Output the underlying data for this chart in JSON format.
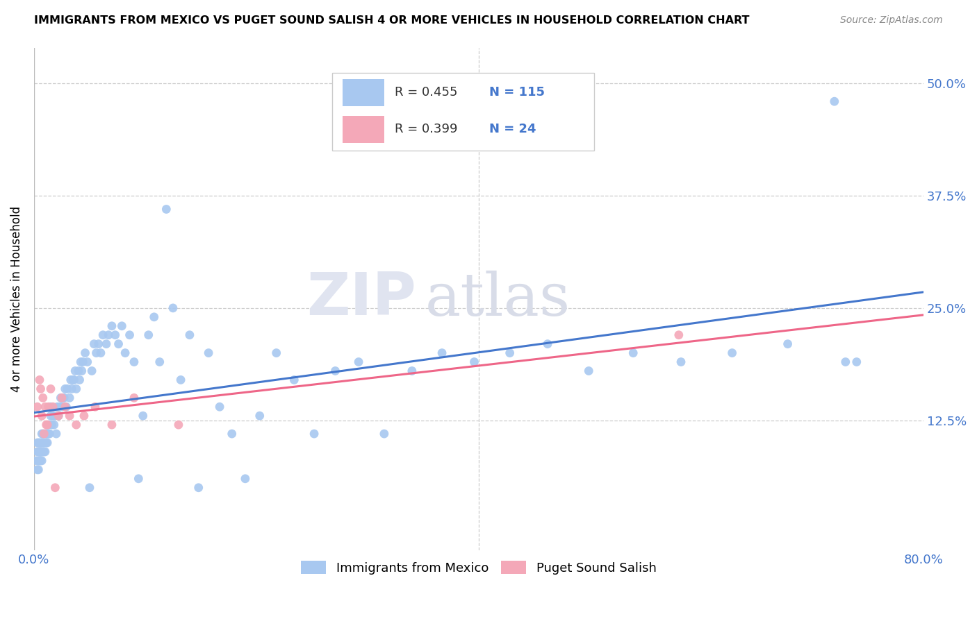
{
  "title": "IMMIGRANTS FROM MEXICO VS PUGET SOUND SALISH 4 OR MORE VEHICLES IN HOUSEHOLD CORRELATION CHART",
  "source": "Source: ZipAtlas.com",
  "ylabel": "4 or more Vehicles in Household",
  "xlim": [
    0.0,
    0.8
  ],
  "ylim": [
    -0.02,
    0.54
  ],
  "yticks": [
    0.0,
    0.125,
    0.25,
    0.375,
    0.5
  ],
  "ytick_labels": [
    "",
    "12.5%",
    "25.0%",
    "37.5%",
    "50.0%"
  ],
  "xtick_labels": [
    "0.0%",
    "",
    "",
    "",
    "80.0%"
  ],
  "blue_R": 0.455,
  "blue_N": 115,
  "pink_R": 0.399,
  "pink_N": 24,
  "blue_color": "#a8c8f0",
  "pink_color": "#f4a8b8",
  "blue_line_color": "#4477cc",
  "pink_line_color": "#ee6688",
  "watermark_zip": "ZIP",
  "watermark_atlas": "atlas",
  "legend_label_blue": "Immigrants from Mexico",
  "legend_label_pink": "Puget Sound Salish",
  "blue_scatter_x": [
    0.002,
    0.003,
    0.003,
    0.003,
    0.004,
    0.004,
    0.004,
    0.004,
    0.005,
    0.005,
    0.005,
    0.005,
    0.006,
    0.006,
    0.006,
    0.006,
    0.007,
    0.007,
    0.007,
    0.007,
    0.008,
    0.008,
    0.008,
    0.009,
    0.009,
    0.01,
    0.01,
    0.011,
    0.011,
    0.012,
    0.012,
    0.013,
    0.013,
    0.014,
    0.015,
    0.015,
    0.016,
    0.017,
    0.018,
    0.019,
    0.02,
    0.021,
    0.022,
    0.023,
    0.024,
    0.025,
    0.026,
    0.027,
    0.028,
    0.029,
    0.03,
    0.032,
    0.033,
    0.034,
    0.035,
    0.036,
    0.037,
    0.038,
    0.04,
    0.041,
    0.042,
    0.043,
    0.044,
    0.046,
    0.048,
    0.05,
    0.052,
    0.054,
    0.056,
    0.058,
    0.06,
    0.062,
    0.065,
    0.067,
    0.07,
    0.073,
    0.076,
    0.079,
    0.082,
    0.086,
    0.09,
    0.094,
    0.098,
    0.103,
    0.108,
    0.113,
    0.119,
    0.125,
    0.132,
    0.14,
    0.148,
    0.157,
    0.167,
    0.178,
    0.19,
    0.203,
    0.218,
    0.234,
    0.252,
    0.271,
    0.292,
    0.315,
    0.34,
    0.367,
    0.396,
    0.428,
    0.462,
    0.499,
    0.539,
    0.582,
    0.628,
    0.678,
    0.72,
    0.73,
    0.74
  ],
  "blue_scatter_y": [
    0.08,
    0.07,
    0.09,
    0.1,
    0.07,
    0.08,
    0.09,
    0.1,
    0.08,
    0.09,
    0.09,
    0.1,
    0.08,
    0.09,
    0.09,
    0.1,
    0.08,
    0.09,
    0.1,
    0.11,
    0.09,
    0.1,
    0.11,
    0.09,
    0.1,
    0.09,
    0.11,
    0.1,
    0.11,
    0.1,
    0.11,
    0.11,
    0.12,
    0.11,
    0.13,
    0.14,
    0.12,
    0.13,
    0.12,
    0.13,
    0.11,
    0.14,
    0.13,
    0.14,
    0.15,
    0.14,
    0.15,
    0.15,
    0.16,
    0.14,
    0.16,
    0.15,
    0.17,
    0.16,
    0.17,
    0.17,
    0.18,
    0.16,
    0.18,
    0.17,
    0.19,
    0.18,
    0.19,
    0.2,
    0.19,
    0.05,
    0.18,
    0.21,
    0.2,
    0.21,
    0.2,
    0.22,
    0.21,
    0.22,
    0.23,
    0.22,
    0.21,
    0.23,
    0.2,
    0.22,
    0.19,
    0.06,
    0.13,
    0.22,
    0.24,
    0.19,
    0.36,
    0.25,
    0.17,
    0.22,
    0.05,
    0.2,
    0.14,
    0.11,
    0.06,
    0.13,
    0.2,
    0.17,
    0.11,
    0.18,
    0.19,
    0.11,
    0.18,
    0.2,
    0.19,
    0.2,
    0.21,
    0.18,
    0.2,
    0.19,
    0.2,
    0.21,
    0.48,
    0.19,
    0.19
  ],
  "pink_scatter_x": [
    0.003,
    0.005,
    0.006,
    0.007,
    0.008,
    0.009,
    0.01,
    0.011,
    0.012,
    0.013,
    0.015,
    0.017,
    0.019,
    0.022,
    0.025,
    0.028,
    0.032,
    0.038,
    0.045,
    0.055,
    0.07,
    0.09,
    0.13,
    0.58
  ],
  "pink_scatter_y": [
    0.14,
    0.17,
    0.16,
    0.13,
    0.15,
    0.11,
    0.14,
    0.12,
    0.12,
    0.14,
    0.16,
    0.14,
    0.05,
    0.13,
    0.15,
    0.14,
    0.13,
    0.12,
    0.13,
    0.14,
    0.12,
    0.15,
    0.12,
    0.22
  ]
}
